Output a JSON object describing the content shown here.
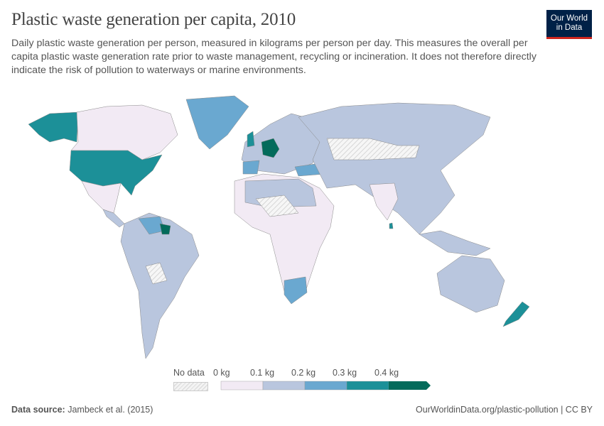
{
  "header": {
    "title": "Plastic waste generation per capita, 2010",
    "subtitle": "Daily plastic waste generation per person, measured in kilograms per person per day. This measures the overall per capita plastic waste generation rate prior to waste management, recycling or incineration. It does not therefore directly indicate the risk of pollution to waterways or marine environments.",
    "logo_line1": "Our World",
    "logo_line2": "in Data"
  },
  "legend": {
    "no_data_label": "No data",
    "ticks": [
      "0 kg",
      "0.1 kg",
      "0.2 kg",
      "0.3 kg",
      "0.4 kg"
    ],
    "bins": [
      {
        "from": 0,
        "to": 0.1,
        "color": "#f2eaf4"
      },
      {
        "from": 0.1,
        "to": 0.2,
        "color": "#b9c6de"
      },
      {
        "from": 0.2,
        "to": 0.3,
        "color": "#6aa8d0"
      },
      {
        "from": 0.3,
        "to": 0.4,
        "color": "#1c9098"
      },
      {
        "from": 0.4,
        "to": null,
        "color": "#036b5b"
      }
    ],
    "no_data_color": "#eeeeee"
  },
  "footer": {
    "source_label": "Data source:",
    "source": "Jambeck et al. (2015)",
    "url_license": "OurWorldinData.org/plastic-pollution | CC BY"
  }
}
